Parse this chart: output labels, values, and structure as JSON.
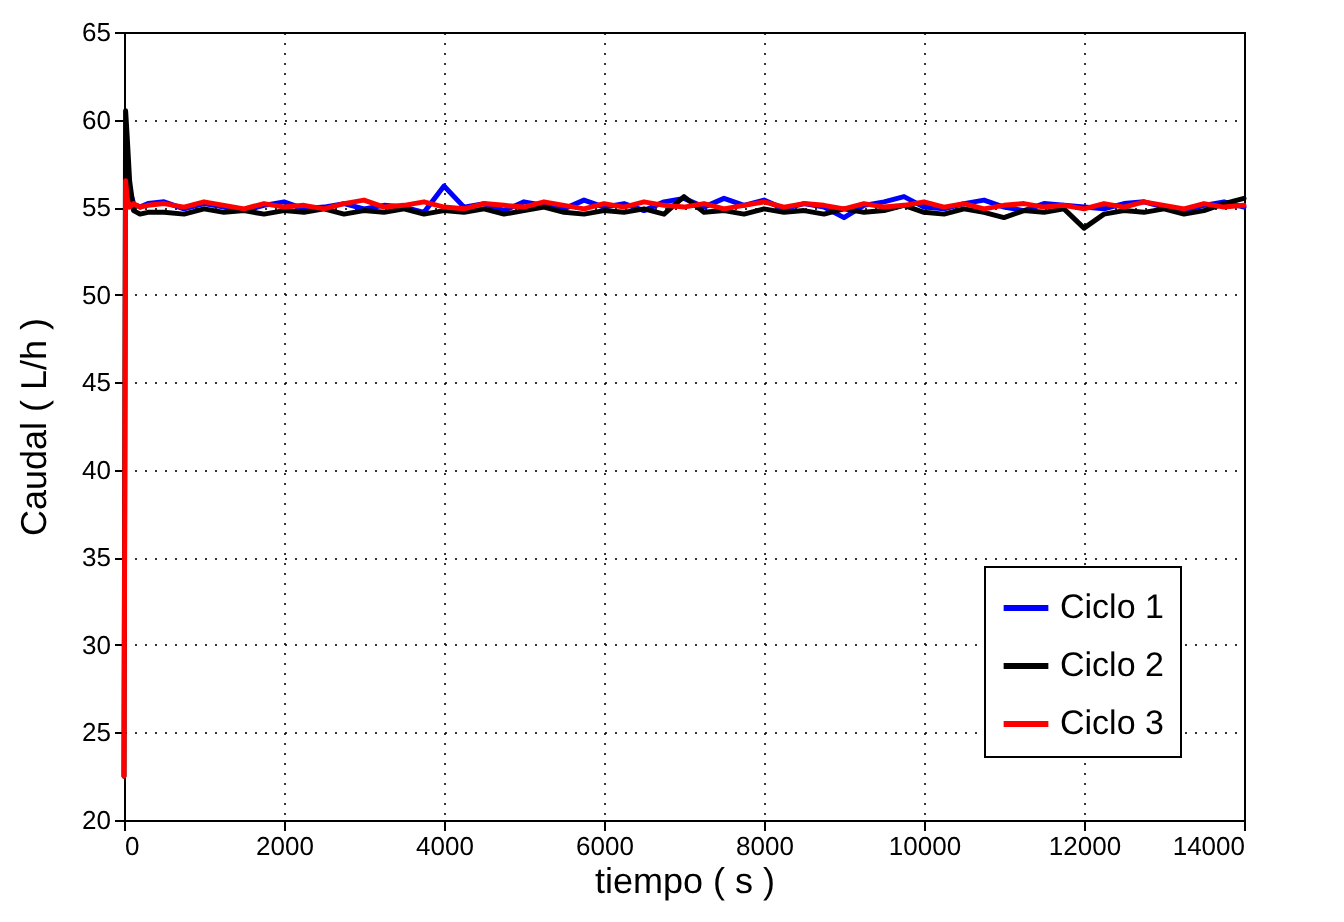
{
  "chart_data": {
    "type": "line",
    "xlabel": "tiempo ( s )",
    "ylabel": "Caudal ( L/h )",
    "x": [
      0,
      20,
      40,
      70,
      120,
      200,
      300,
      500,
      750,
      1000,
      1250,
      1500,
      1750,
      2000,
      2250,
      2500,
      2750,
      3000,
      3250,
      3500,
      3750,
      4000,
      4250,
      4500,
      4750,
      5000,
      5250,
      5500,
      5750,
      6000,
      6250,
      6500,
      6750,
      7000,
      7250,
      7500,
      7750,
      8000,
      8250,
      8500,
      8750,
      9000,
      9250,
      9500,
      9750,
      10000,
      10250,
      10500,
      10750,
      11000,
      11250,
      11500,
      11750,
      12000,
      12250,
      12500,
      12750,
      13000,
      13250,
      13500,
      13750,
      14000
    ],
    "series": [
      {
        "name": "Ciclo 1",
        "color": "#0000ff",
        "values": [
          null,
          null,
          null,
          56,
          55.2,
          55,
          55.2,
          55.3,
          54.9,
          55.2,
          55,
          54.8,
          55.1,
          55.3,
          54.9,
          55,
          55.2,
          54.9,
          55.1,
          55,
          54.7,
          56.2,
          55,
          55.2,
          54.8,
          55.3,
          55.1,
          54.9,
          55.4,
          55,
          55.2,
          54.8,
          55.3,
          55.5,
          55,
          55.5,
          55.1,
          55.4,
          54.9,
          55.2,
          55,
          54.4,
          55.1,
          55.3,
          55.6,
          55,
          54.9,
          55.2,
          55.4,
          55,
          54.8,
          55.2,
          55.1,
          55,
          54.9,
          55.2,
          55.3,
          55,
          54.8,
          55.1,
          55.3,
          55
        ]
      },
      {
        "name": "Ciclo 2",
        "color": "#000000",
        "values": [
          22.5,
          60.5,
          59,
          56.5,
          54.8,
          54.6,
          54.7,
          54.7,
          54.6,
          54.9,
          54.7,
          54.8,
          54.6,
          54.8,
          54.7,
          54.9,
          54.6,
          54.8,
          54.7,
          54.9,
          54.6,
          54.8,
          54.7,
          54.9,
          54.6,
          54.8,
          55,
          54.7,
          54.6,
          54.8,
          54.7,
          54.9,
          54.6,
          55.6,
          54.7,
          54.8,
          54.6,
          54.9,
          54.7,
          54.8,
          54.6,
          54.9,
          54.7,
          54.8,
          55.1,
          54.7,
          54.6,
          54.9,
          54.7,
          54.4,
          54.8,
          54.7,
          54.9,
          53.8,
          54.6,
          54.8,
          54.7,
          54.9,
          54.6,
          54.8,
          55.2,
          55.5
        ]
      },
      {
        "name": "Ciclo 3",
        "color": "#ff0000",
        "values": [
          22.5,
          56.5,
          55.5,
          55,
          55.2,
          55,
          55.1,
          55.2,
          55,
          55.3,
          55.1,
          54.9,
          55.2,
          55,
          55.1,
          54.9,
          55.2,
          55.4,
          55,
          55.1,
          55.3,
          55,
          54.9,
          55.2,
          55.1,
          55,
          55.3,
          55.1,
          54.9,
          55.2,
          55,
          55.3,
          55.1,
          55,
          55.2,
          54.9,
          55.1,
          55.3,
          55,
          55.2,
          55.1,
          54.9,
          55.2,
          55,
          55.1,
          55.3,
          55,
          55.2,
          54.9,
          55.1,
          55.2,
          55,
          55.1,
          54.9,
          55.2,
          55,
          55.3,
          55.1,
          54.9,
          55.2,
          55,
          55.1
        ]
      }
    ],
    "xlim": [
      0,
      14000
    ],
    "xticks": [
      0,
      2000,
      4000,
      6000,
      8000,
      10000,
      12000,
      14000
    ],
    "ylim": [
      20,
      65
    ],
    "yticks": [
      20,
      25,
      30,
      35,
      40,
      45,
      50,
      55,
      60,
      65
    ],
    "grid": true,
    "legend": "bottom right",
    "line_style": "solid",
    "marker": "none"
  }
}
